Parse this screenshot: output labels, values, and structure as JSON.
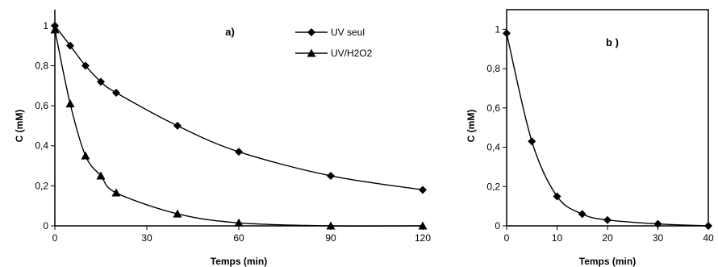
{
  "chart_data": [
    {
      "type": "line",
      "title": "a)",
      "xlabel": "Temps (min)",
      "ylabel": "C (mM)",
      "xlim": [
        0,
        120
      ],
      "ylim": [
        0,
        1.08
      ],
      "xticks": [
        0,
        30,
        60,
        90,
        120
      ],
      "xtick_labels": [
        "0",
        "30",
        "60",
        "90",
        "120"
      ],
      "yticks": [
        0,
        0.2,
        0.4,
        0.6,
        0.8,
        1
      ],
      "ytick_labels": [
        "0",
        "0,2",
        "0,4",
        "0,6",
        "0,8",
        "1"
      ],
      "grid": false,
      "legend_position": "top-right",
      "series": [
        {
          "name": "UV seul",
          "marker": "diamond",
          "color": "#000000",
          "x": [
            0,
            5,
            10,
            15,
            20,
            40,
            60,
            90,
            120
          ],
          "y": [
            1.0,
            0.9,
            0.8,
            0.72,
            0.665,
            0.5,
            0.37,
            0.25,
            0.18
          ]
        },
        {
          "name": "UV/H2O2",
          "marker": "triangle",
          "color": "#000000",
          "x": [
            0,
            5,
            10,
            15,
            20,
            40,
            60,
            90,
            120
          ],
          "y": [
            0.98,
            0.61,
            0.35,
            0.25,
            0.165,
            0.06,
            0.015,
            0.0,
            0.0
          ]
        }
      ]
    },
    {
      "type": "line",
      "title": "b )",
      "xlabel": "Temps (min)",
      "ylabel": "C (mM)",
      "xlim": [
        0,
        40
      ],
      "ylim": [
        0,
        1.1
      ],
      "xticks": [
        0,
        10,
        20,
        30,
        40
      ],
      "xtick_labels": [
        "0",
        "10",
        "20",
        "30",
        "40"
      ],
      "yticks": [
        0,
        0.2,
        0.4,
        0.6,
        0.8,
        1
      ],
      "ytick_labels": [
        "0",
        "0,2",
        "0,4",
        "0,6",
        "0,8",
        "1"
      ],
      "grid": false,
      "series": [
        {
          "name": "",
          "marker": "diamond",
          "color": "#000000",
          "x": [
            0,
            5,
            10,
            15,
            20,
            30,
            40
          ],
          "y": [
            0.98,
            0.43,
            0.15,
            0.06,
            0.03,
            0.01,
            0.0
          ]
        }
      ]
    }
  ]
}
